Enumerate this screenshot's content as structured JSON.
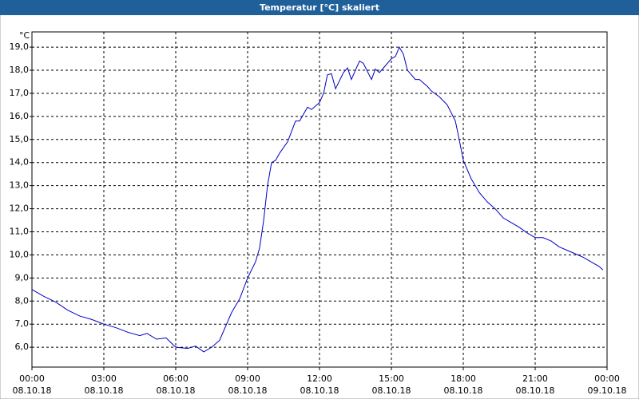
{
  "chart_data": {
    "type": "line",
    "title": "Temperatur [°C] skaliert",
    "y_unit": "°C",
    "xlim": [
      0,
      24
    ],
    "ylim": [
      5.14,
      19.66
    ],
    "grid": true,
    "xticks": [
      {
        "value": 0,
        "label": "00:00",
        "date": "08.10.18"
      },
      {
        "value": 3,
        "label": "03:00",
        "date": "08.10.18"
      },
      {
        "value": 6,
        "label": "06:00",
        "date": "08.10.18"
      },
      {
        "value": 9,
        "label": "09:00",
        "date": "08.10.18"
      },
      {
        "value": 12,
        "label": "12:00",
        "date": "08.10.18"
      },
      {
        "value": 15,
        "label": "15:00",
        "date": "08.10.18"
      },
      {
        "value": 18,
        "label": "18:00",
        "date": "08.10.18"
      },
      {
        "value": 21,
        "label": "21:00",
        "date": "08.10.18"
      },
      {
        "value": 24,
        "label": "00:00",
        "date": "09.10.18"
      }
    ],
    "yticks": [
      {
        "value": 6,
        "label": "6,0"
      },
      {
        "value": 7,
        "label": "7,0"
      },
      {
        "value": 8,
        "label": "8,0"
      },
      {
        "value": 9,
        "label": "9,0"
      },
      {
        "value": 10,
        "label": "10,0"
      },
      {
        "value": 11,
        "label": "11,0"
      },
      {
        "value": 12,
        "label": "12,0"
      },
      {
        "value": 13,
        "label": "13,0"
      },
      {
        "value": 14,
        "label": "14,0"
      },
      {
        "value": 15,
        "label": "15,0"
      },
      {
        "value": 16,
        "label": "16,0"
      },
      {
        "value": 17,
        "label": "17,0"
      },
      {
        "value": 18,
        "label": "18,0"
      },
      {
        "value": 19,
        "label": "19,0"
      }
    ],
    "x": [
      0,
      0.5,
      1,
      1.5,
      2,
      2.5,
      3,
      3.5,
      4,
      4.5,
      4.8,
      5.2,
      5.6,
      6,
      6.5,
      6.83,
      7.17,
      7.5,
      7.83,
      8.33,
      8.67,
      9,
      9.33,
      9.5,
      9.67,
      9.83,
      10,
      10.17,
      10.33,
      10.67,
      11,
      11.17,
      11.5,
      11.67,
      12,
      12.17,
      12.33,
      12.5,
      12.67,
      13,
      13.17,
      13.33,
      13.67,
      13.83,
      14.17,
      14.33,
      14.5,
      14.67,
      15,
      15.17,
      15.33,
      15.5,
      15.67,
      16,
      16.17,
      16.5,
      16.67,
      17,
      17.33,
      17.67,
      17.83,
      18,
      18.33,
      18.67,
      19,
      19.33,
      19.67,
      20,
      20.33,
      20.67,
      21,
      21.33,
      21.67,
      22,
      22.33,
      22.67,
      23,
      23.33,
      23.67,
      23.83
    ],
    "series": [
      {
        "color": "#0000c0",
        "values": [
          8.5,
          8.2,
          7.95,
          7.6,
          7.35,
          7.2,
          7.0,
          6.85,
          6.65,
          6.5,
          6.6,
          6.35,
          6.4,
          6.0,
          5.95,
          6.05,
          5.8,
          6.0,
          6.3,
          7.5,
          8.1,
          9.0,
          9.7,
          10.3,
          11.5,
          13.0,
          14.0,
          14.1,
          14.4,
          14.9,
          15.8,
          15.8,
          16.4,
          16.3,
          16.6,
          17.0,
          17.8,
          17.85,
          17.2,
          17.9,
          18.1,
          17.6,
          18.4,
          18.3,
          17.6,
          18.05,
          17.9,
          18.1,
          18.5,
          18.6,
          19.0,
          18.7,
          18.0,
          17.6,
          17.6,
          17.3,
          17.1,
          16.85,
          16.5,
          15.8,
          15.0,
          14.1,
          13.3,
          12.7,
          12.3,
          12.0,
          11.6,
          11.4,
          11.2,
          10.95,
          10.75,
          10.75,
          10.6,
          10.35,
          10.2,
          10.05,
          9.9,
          9.7,
          9.5,
          9.35
        ]
      }
    ]
  }
}
